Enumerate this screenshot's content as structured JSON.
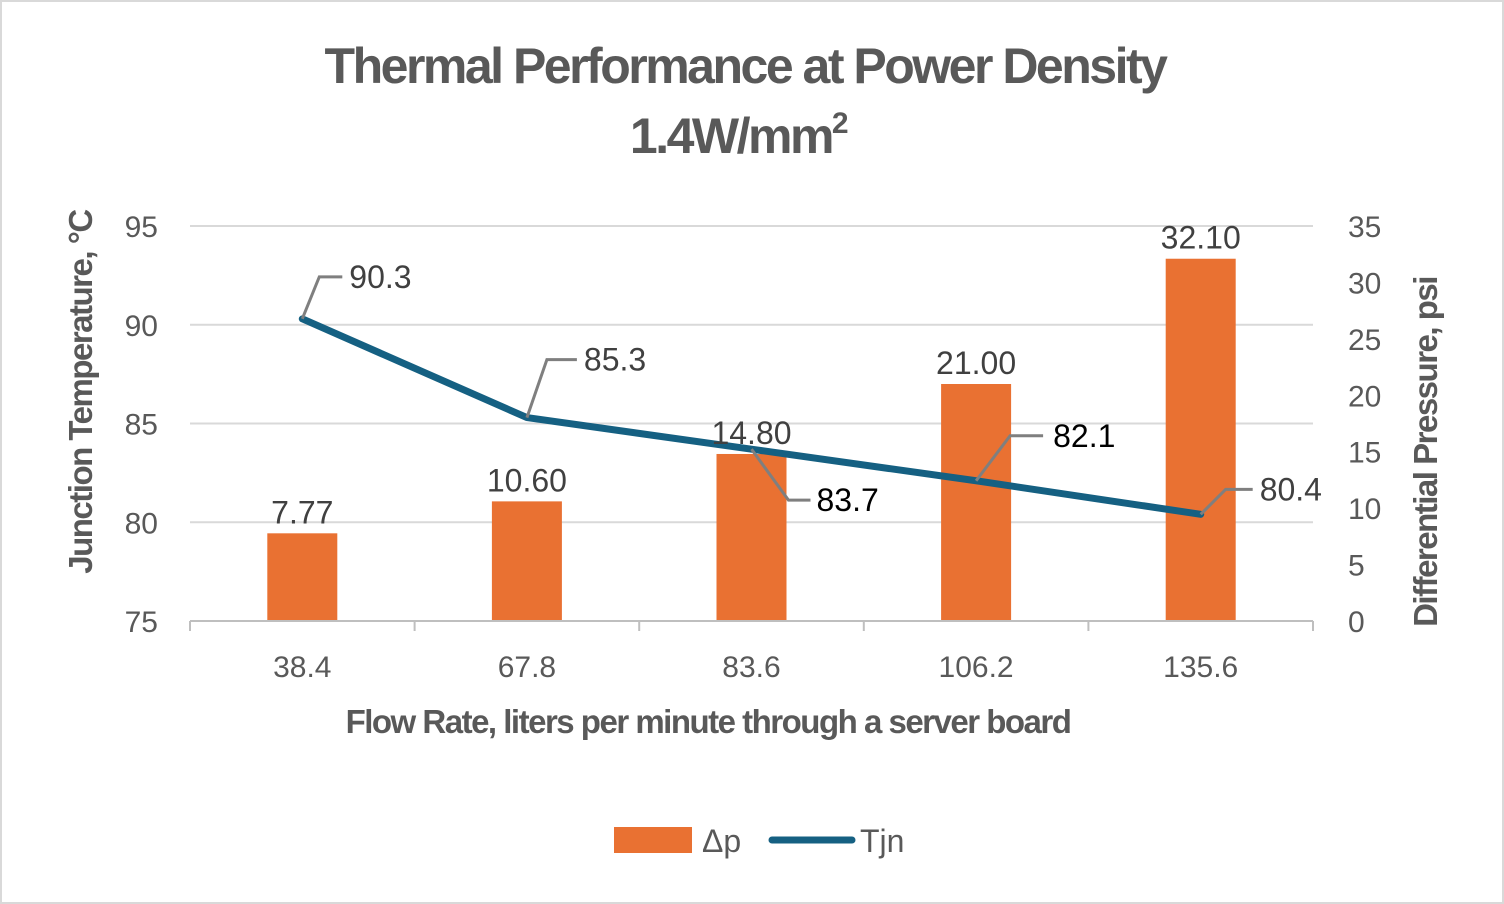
{
  "chart_data": {
    "type": "bar+line",
    "title": "Thermal Performance at Power Density",
    "subtitle": "1.4W/mm",
    "subtitle_superscript": "2",
    "xlabel": "Flow Rate, liters per minute through a server board",
    "ylabel": "Junction Temperature, °C",
    "y2label": "Differential Pressure, psi",
    "categories": [
      "38.4",
      "67.8",
      "83.6",
      "106.2",
      "135.6"
    ],
    "ylim": [
      75,
      95
    ],
    "yticks": [
      "75",
      "80",
      "85",
      "90",
      "95"
    ],
    "y2lim": [
      0,
      35
    ],
    "y2ticks": [
      "0",
      "5",
      "10",
      "15",
      "20",
      "25",
      "30",
      "35"
    ],
    "grid": true,
    "legend_position": "bottom",
    "series": [
      {
        "name": "Δp",
        "type": "bar",
        "axis": "right",
        "color": "#E97132",
        "values": [
          7.77,
          10.6,
          14.8,
          21.0,
          32.1
        ],
        "labels": [
          "7.77",
          "10.60",
          "14.80",
          "21.00",
          "32.10"
        ]
      },
      {
        "name": "Tjn",
        "type": "line",
        "axis": "left",
        "color": "#156082",
        "values": [
          90.3,
          85.3,
          83.7,
          82.1,
          80.4
        ],
        "labels": [
          "90.3",
          "85.3",
          "83.7",
          "82.1",
          "80.4"
        ]
      }
    ]
  }
}
